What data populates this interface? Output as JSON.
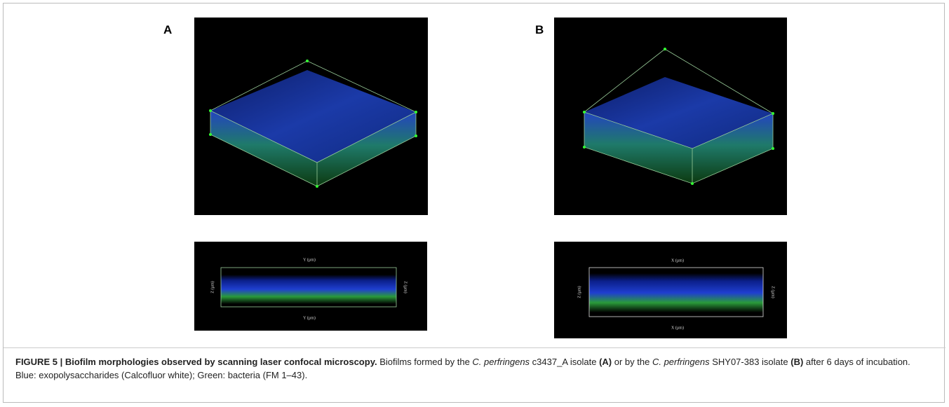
{
  "panels": [
    {
      "label": "A",
      "side_view": {
        "top_axis": "Y (µm)",
        "bottom_axis": "Y (µm)",
        "left_axis": "Z (µm)",
        "right_axis": "Z (µm)"
      }
    },
    {
      "label": "B",
      "side_view": {
        "top_axis": "X (µm)",
        "bottom_axis": "X (µm)",
        "left_axis": "Z (µm)",
        "right_axis": "Z (µm)"
      }
    }
  ],
  "caption": {
    "segments": [
      {
        "text": "FIGURE 5 | Biofilm morphologies observed by scanning laser confocal microscopy.",
        "style": "bold"
      },
      {
        "text": " Biofilms formed by the ",
        "style": "normal"
      },
      {
        "text": "C. perfringens",
        "style": "italic"
      },
      {
        "text": " c3437_A isolate ",
        "style": "normal"
      },
      {
        "text": "(A)",
        "style": "bold"
      },
      {
        "text": " or by the ",
        "style": "normal"
      },
      {
        "text": "C. perfringens",
        "style": "italic"
      },
      {
        "text": " SHY07-383 isolate ",
        "style": "normal"
      },
      {
        "text": "(B)",
        "style": "bold"
      },
      {
        "text": " after 6 days of incubation. Blue: exopolysaccharides (Calcofluor white); Green: bacteria (FM 1–43).",
        "style": "normal"
      }
    ]
  }
}
